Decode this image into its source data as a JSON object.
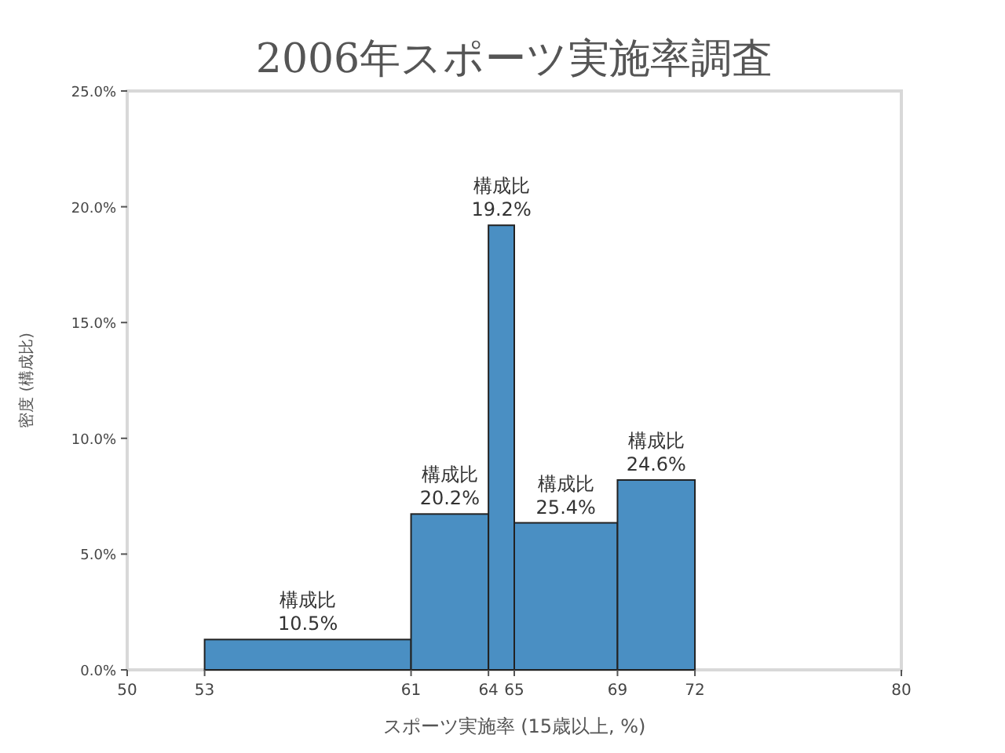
{
  "chart_data": {
    "type": "histogram",
    "title": "2006年スポーツ実施率調査",
    "xlabel": "スポーツ実施率 (15歳以上, %)",
    "ylabel": "密度 (構成比)",
    "bins": [
      53,
      61,
      64,
      65,
      69,
      72
    ],
    "values": [
      1.31,
      6.73,
      19.2,
      6.35,
      8.2
    ],
    "value_labels": [
      "構成比\n10.5%",
      "構成比\n20.2%",
      "構成比\n19.2%",
      "構成比\n25.4%",
      "構成比\n24.6%"
    ],
    "color": "#4a8fc3",
    "xlim": [
      50,
      80
    ],
    "xticks": [
      50,
      53,
      61,
      64,
      65,
      69,
      72,
      80
    ],
    "ylim": [
      0,
      25
    ],
    "yticks": [
      {
        "value": 0,
        "label": "0.0%"
      },
      {
        "value": 5,
        "label": "5.0%"
      },
      {
        "value": 10,
        "label": "10.0%"
      },
      {
        "value": 15,
        "label": "15.0%"
      },
      {
        "value": 20,
        "label": "20.0%"
      },
      {
        "value": 25,
        "label": "25.0%"
      }
    ],
    "grid": false
  }
}
